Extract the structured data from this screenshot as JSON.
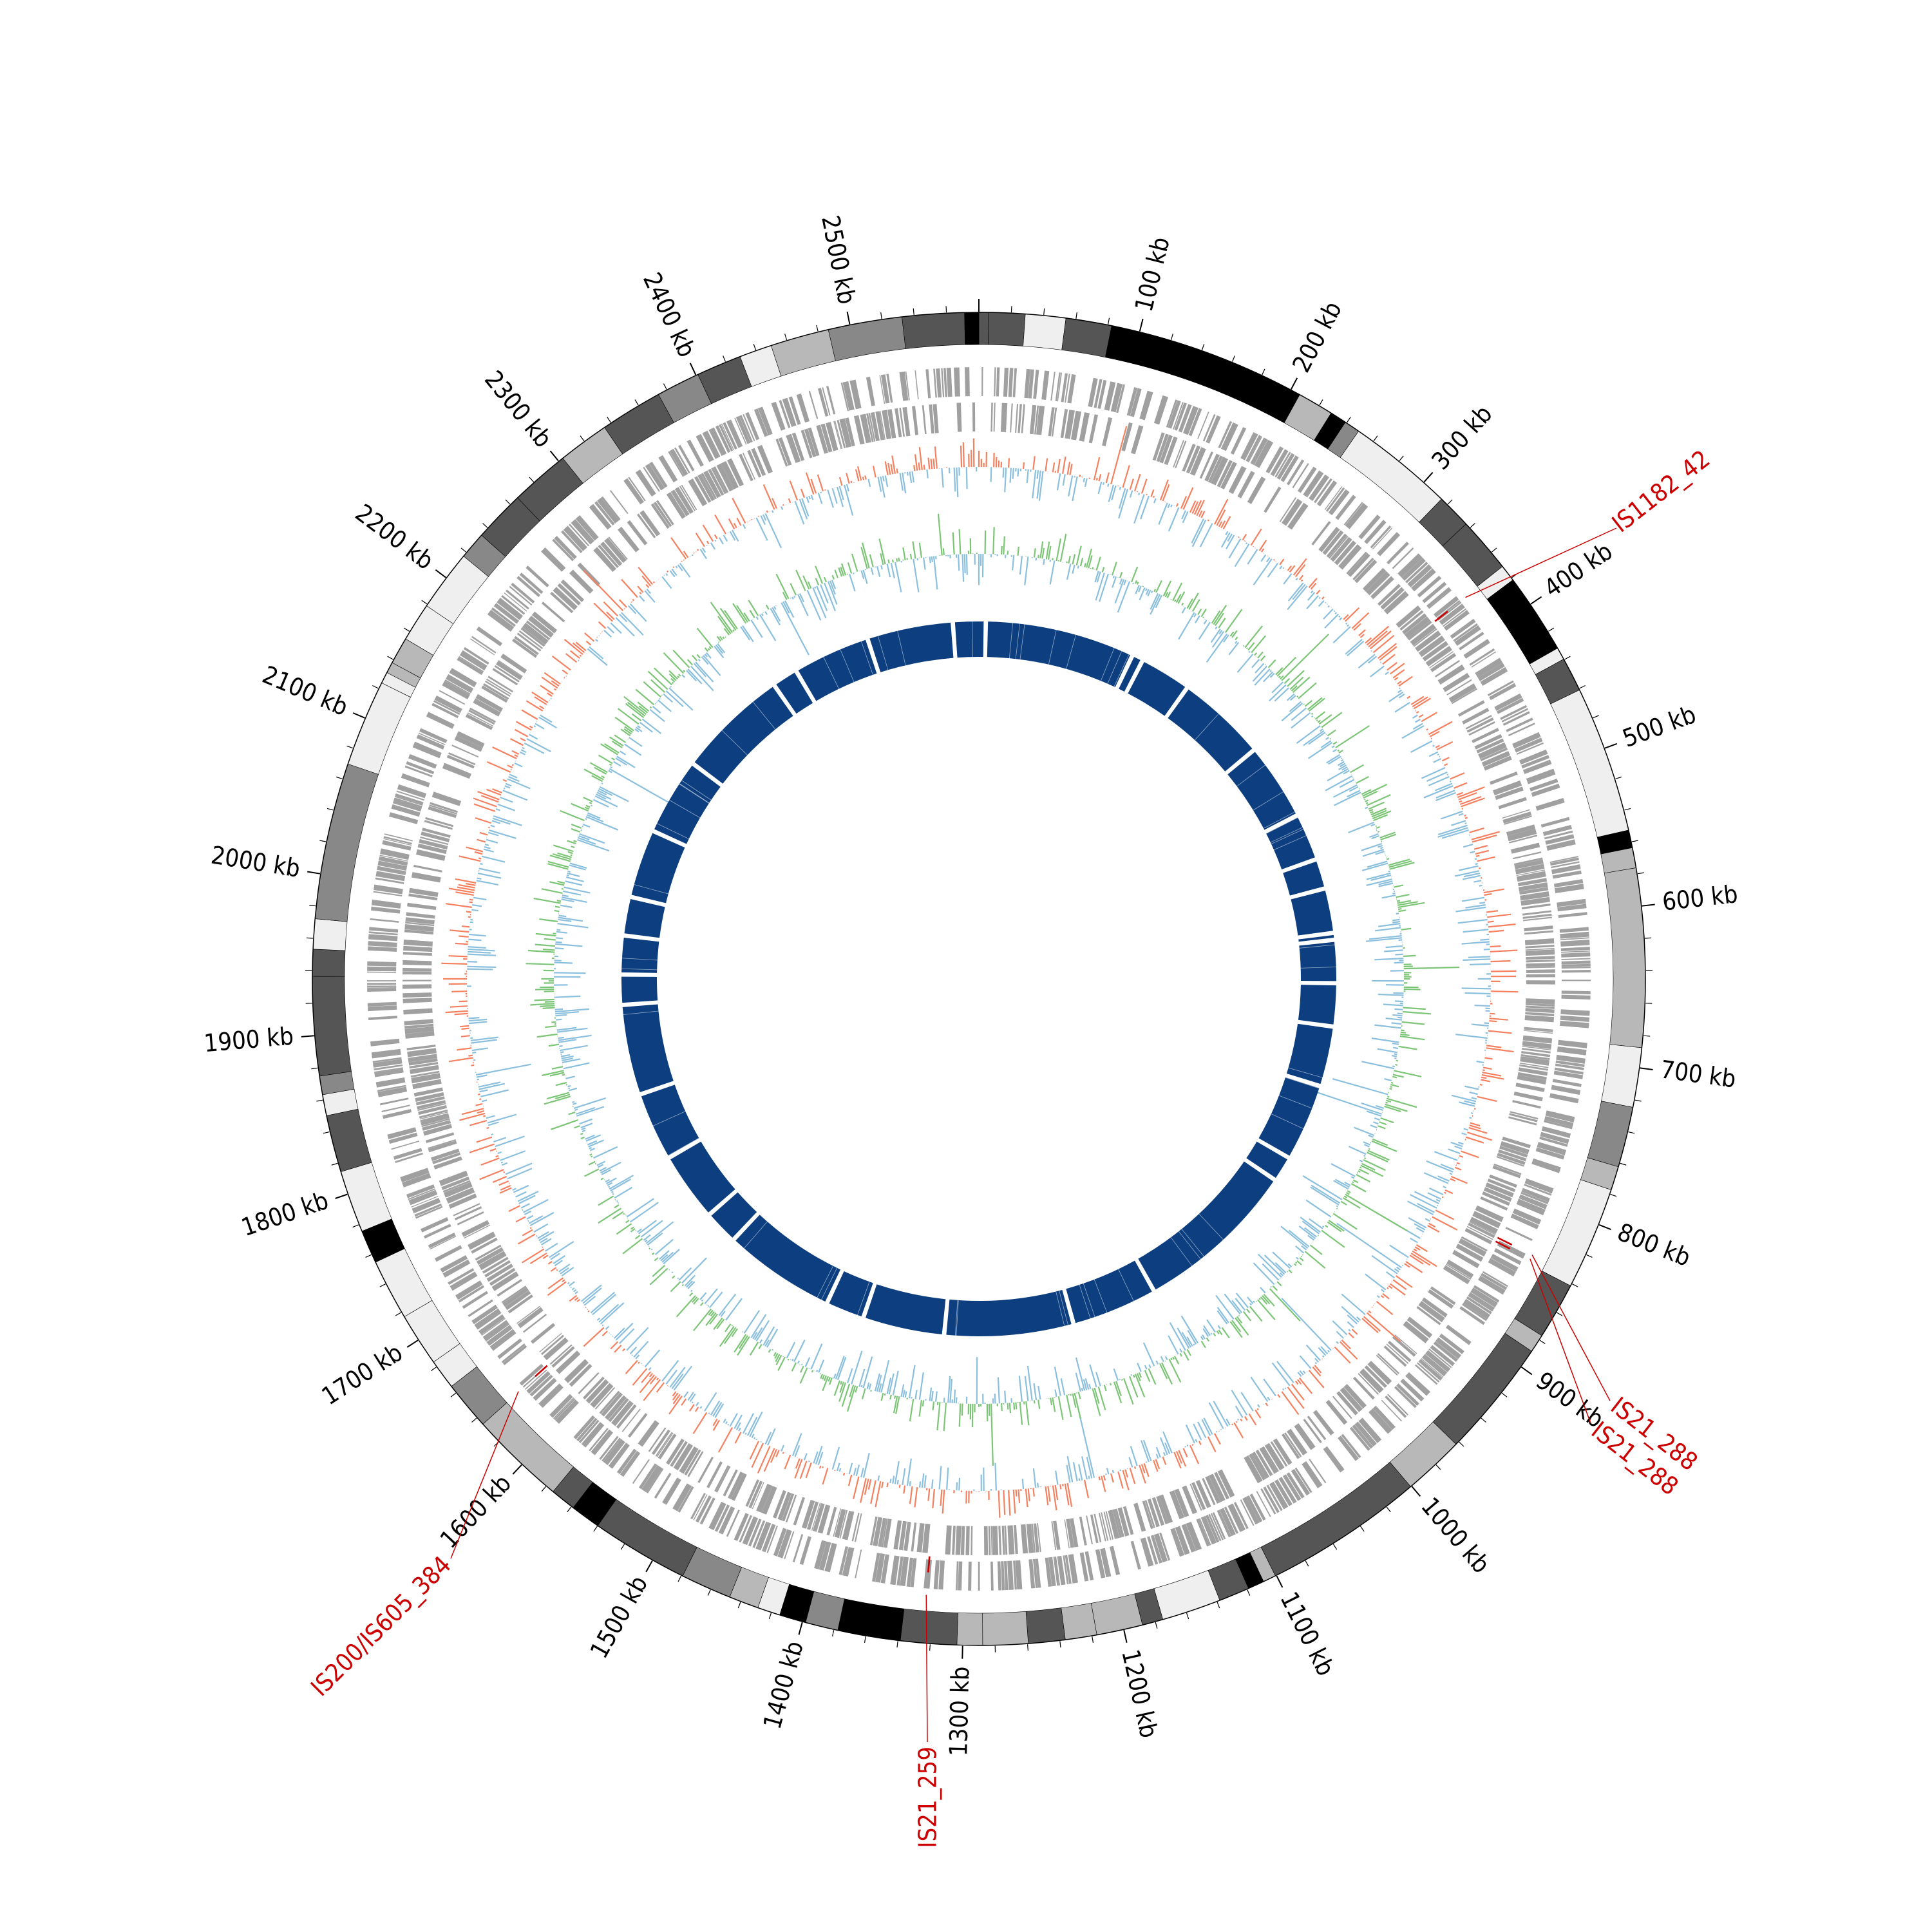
{
  "genome": {
    "length_kb": 2580,
    "tick_labels": [
      "100 kb",
      "200 kb",
      "300 kb",
      "400 kb",
      "500 kb",
      "600 kb",
      "700 kb",
      "800 kb",
      "900 kb",
      "1000 kb",
      "1100 kb",
      "1200 kb",
      "1300 kb",
      "1400 kb",
      "1500 kb",
      "1600 kb",
      "1700 kb",
      "1800 kb",
      "1900 kb",
      "2000 kb",
      "2100 kb",
      "2200 kb",
      "2300 kb",
      "2400 kb",
      "2500 kb"
    ],
    "major_tick_step_kb": 100,
    "minor_tick_step_kb": 20
  },
  "insertion_sequences": [
    {
      "label": "IS1182_42",
      "position_kb": 372,
      "color": "#cc0000"
    },
    {
      "label": "IS21_288",
      "position_kb": 835,
      "color": "#cc0000"
    },
    {
      "label": "IS21_288",
      "position_kb": 838,
      "color": "#cc0000"
    },
    {
      "label": "IS21_259",
      "position_kb": 1325,
      "color": "#cc0000"
    },
    {
      "label": "IS200/IS605_384",
      "position_kb": 1635,
      "color": "#cc0000"
    }
  ],
  "colors": {
    "karyotype_shades": [
      "#000000",
      "#555555",
      "#888888",
      "#b8b8b8",
      "#efefef"
    ],
    "gene_track": "#a0a0a0",
    "gc_skew_positive": "#f4805f",
    "gc_skew_negative": "#8bbfde",
    "gc_content_positive": "#7cc576",
    "gc_content_negative": "#8bbfde",
    "homology_ring": "#0d3f80",
    "annotation": "#cc0000",
    "ticks": "#000000"
  },
  "homology_ring_gaps_kb": [
    8,
    182,
    195,
    255,
    360,
    450,
    505,
    540,
    592,
    600,
    650,
    700,
    770,
    860,
    890,
    1080,
    1180,
    1330,
    1425,
    1470,
    1600,
    1640,
    1720,
    1800,
    1905,
    1940,
    1985,
    2030,
    2110,
    2200,
    2330,
    2360,
    2450,
    2550
  ]
}
